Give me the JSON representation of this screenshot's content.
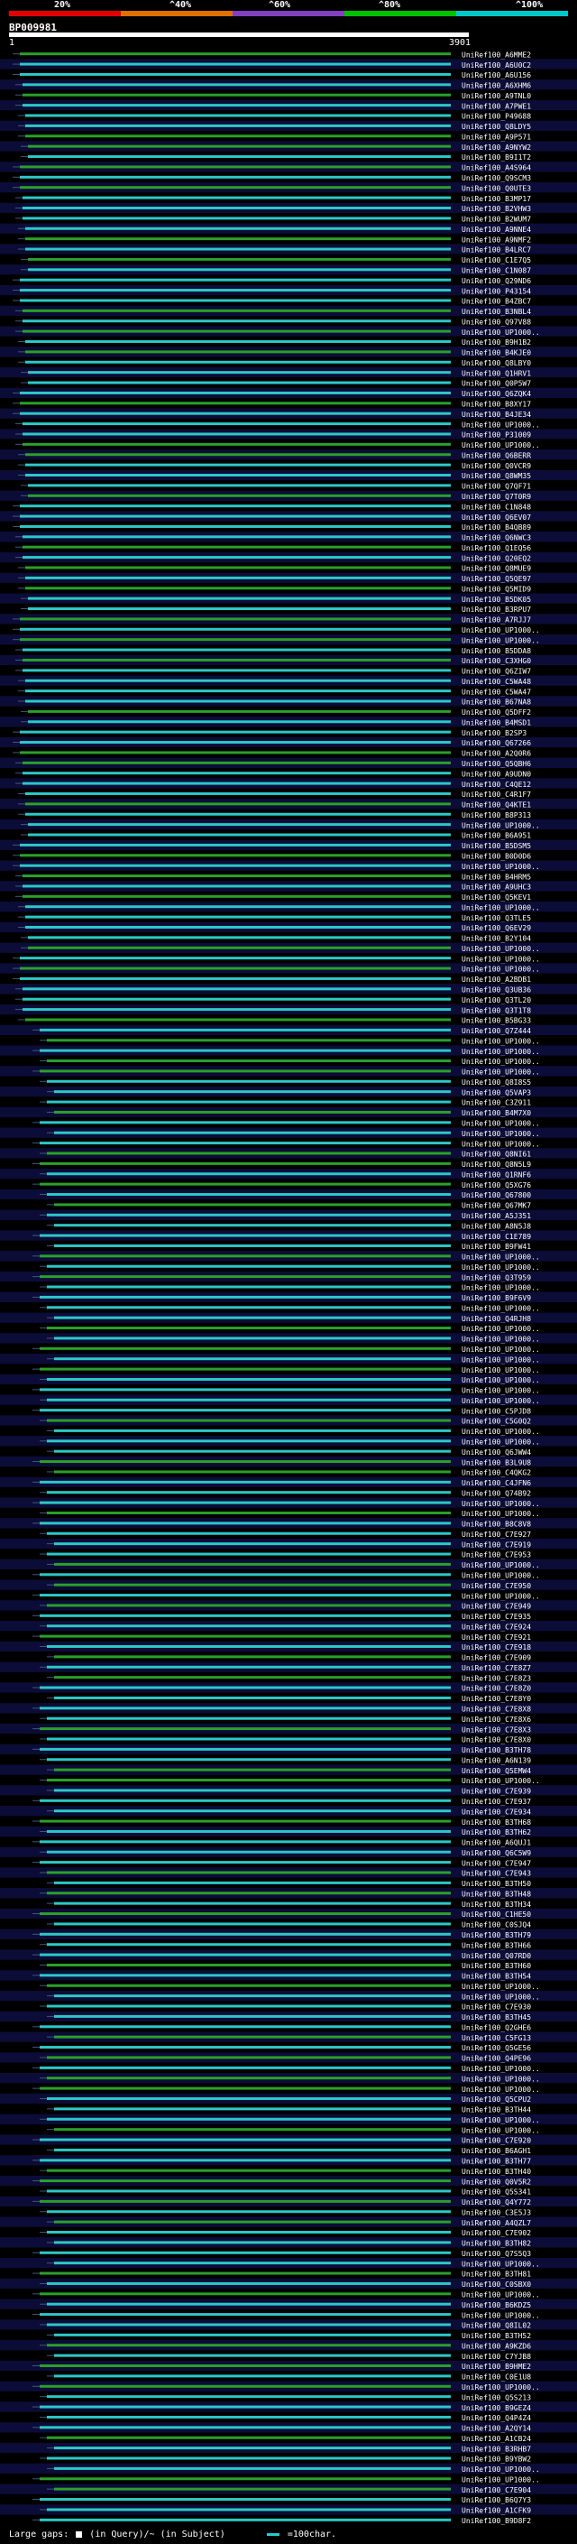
{
  "legend": {
    "labels": [
      "20%",
      "^40%",
      "^60%",
      "^80%",
      "^100%"
    ],
    "colors": [
      "#e00000",
      "#e07000",
      "#8040c0",
      "#00c000",
      "#00c8c8"
    ]
  },
  "query": {
    "name": "BP009981",
    "start": "1",
    "end": "3901"
  },
  "colors": {
    "row_bg_a": "#000000",
    "row_bg_b": "#0c0c38",
    "green": "#2aa02a",
    "cyan": "#2cc8c8",
    "line": "#3a5a7a"
  },
  "hits": [
    "UniRef100_A6MME2",
    "UniRef100_A6U0C2",
    "UniRef100_A6U156",
    "UniRef100_A6XHM6",
    "UniRef100_A9TNL0",
    "UniRef100_A7PWE1",
    "UniRef100_P49688",
    "UniRef100_Q8LDY5",
    "UniRef100_A9P571",
    "UniRef100_A9NYW2",
    "UniRef100_B9I1T2",
    "UniRef100_A4S964",
    "UniRef100_Q9SCM3",
    "UniRef100_Q0UTE3",
    "UniRef100_B3MP17",
    "UniRef100_B2VHW3",
    "UniRef100_B2WUM7",
    "UniRef100_A9NNE4",
    "UniRef100_A9NMF2",
    "UniRef100_B4LRC7",
    "UniRef100_C1E7Q5",
    "UniRef100_C1N087",
    "UniRef100_Q29ND6",
    "UniRef100_P43154",
    "UniRef100_B4ZBC7",
    "UniRef100_B3NBL4",
    "UniRef100_Q97V88",
    "UniRef100_UP1000..",
    "UniRef100_B9H1B2",
    "UniRef100_B4KJE0",
    "UniRef100_Q8LBY0",
    "UniRef100_Q1HRV1",
    "UniRef100_Q0P5W7",
    "UniRef100_Q6ZQK4",
    "UniRef100_B8XY17",
    "UniRef100_B4JE34",
    "UniRef100_UP1000..",
    "UniRef100_P31009",
    "UniRef100_UP1000..",
    "UniRef100_Q6BERR",
    "UniRef100_Q0VCR9",
    "UniRef100_Q8WM35",
    "UniRef100_Q7QF71",
    "UniRef100_Q7T0R9",
    "UniRef100_C1N848",
    "UniRef100_Q6EV07",
    "UniRef100_B4QB89",
    "UniRef100_Q6NWC3",
    "UniRef100_Q1EQ56",
    "UniRef100_Q20EQ2",
    "UniRef100_Q8MUE9",
    "UniRef100_Q5QE97",
    "UniRef100_Q5MID9",
    "UniRef100_B5DK05",
    "UniRef100_B3RPU7",
    "UniRef100_A7RJJ7",
    "UniRef100_UP1000..",
    "UniRef100_UP1000..",
    "UniRef100_B5DDA8",
    "UniRef100_C3XHG0",
    "UniRef100_Q6ZIW7",
    "UniRef100_C5WA48",
    "UniRef100_C5WA47",
    "UniRef100_B67NA8",
    "UniRef100_Q5DFF2",
    "UniRef100_B4MSD1",
    "UniRef100_B2SP3",
    "UniRef100_Q67266",
    "UniRef100_A2Q0R6",
    "UniRef100_Q5QBH6",
    "UniRef100_A9UDN0",
    "UniRef100_C4QE12",
    "UniRef100_C4R1F7",
    "UniRef100_Q4KTE1",
    "UniRef100_B8P313",
    "UniRef100_UP1000..",
    "UniRef100_B6A951",
    "UniRef100_B5DSM5",
    "UniRef100_B0D0D6",
    "UniRef100_UP1000..",
    "UniRef100_B4HRM5",
    "UniRef100_A9UHC3",
    "UniRef100_Q5KEV1",
    "UniRef100_UP1000..",
    "UniRef100_Q3TLE5",
    "UniRef100_Q6EV29",
    "UniRef100_B2Y104",
    "UniRef100_UP1000..",
    "UniRef100_UP1000..",
    "UniRef100_UP1000..",
    "UniRef100_A2BDB1",
    "UniRef100_Q3UB36",
    "UniRef100_Q3TL20",
    "UniRef100_Q3T1T8",
    "UniRef100_B5BG33",
    "UniRef100_Q7Z444",
    "UniRef100_UP1000..",
    "UniRef100_UP1000..",
    "UniRef100_UP1000..",
    "UniRef100_UP1000..",
    "UniRef100_Q8I8S5",
    "UniRef100_Q5VAP3",
    "UniRef100_C3Z911",
    "UniRef100_B4M7X0",
    "UniRef100_UP1000..",
    "UniRef100_UP1000..",
    "UniRef100_UP1000..",
    "UniRef100_Q8NI61",
    "UniRef100_Q8N5L9",
    "UniRef100_Q1RNF6",
    "UniRef100_Q5XG76",
    "UniRef100_Q67800",
    "UniRef100_Q67MK7",
    "UniRef100_A5J351",
    "UniRef100_A8N5J8",
    "UniRef100_C1E789",
    "UniRef100_B9FW41",
    "UniRef100_UP1000..",
    "UniRef100_UP1000..",
    "UniRef100_Q3T959",
    "UniRef100_UP1000..",
    "UniRef100_B9F6V9",
    "UniRef100_UP1000..",
    "UniRef100_Q4RJH8",
    "UniRef100_UP1000..",
    "UniRef100_UP1000..",
    "UniRef100_UP1000..",
    "UniRef100_UP1000..",
    "UniRef100_UP1000..",
    "UniRef100_UP1000..",
    "UniRef100_UP1000..",
    "UniRef100_UP1000..",
    "UniRef100_C5PJD8",
    "UniRef100_C5G0Q2",
    "UniRef100_UP1000..",
    "UniRef100_UP1000..",
    "UniRef100_Q6JWW4",
    "UniRef100_B3L9U8",
    "UniRef100_C4QKG2",
    "UniRef100_C4JFN6",
    "UniRef100_Q74B92",
    "UniRef100_UP1000..",
    "UniRef100_UP1000..",
    "UniRef100_B8C8V8",
    "UniRef100_C7E927",
    "UniRef100_C7E919",
    "UniRef100_C7E953",
    "UniRef100_UP1000..",
    "UniRef100_UP1000..",
    "UniRef100_C7E950",
    "UniRef100_UP1000..",
    "UniRef100_C7E949",
    "UniRef100_C7E935",
    "UniRef100_C7E924",
    "UniRef100_C7E921",
    "UniRef100_C7E918",
    "UniRef100_C7E909",
    "UniRef100_C7E8Z7",
    "UniRef100_C7E8Z3",
    "UniRef100_C7E8Z0",
    "UniRef100_C7E8Y0",
    "UniRef100_C7E8X8",
    "UniRef100_C7E8X6",
    "UniRef100_C7E8X3",
    "UniRef100_C7E8X0",
    "UniRef100_B3TH78",
    "UniRef100_A6N139",
    "UniRef100_Q5EMW4",
    "UniRef100_UP1000..",
    "UniRef100_C7E939",
    "UniRef100_C7E937",
    "UniRef100_C7E934",
    "UniRef100_B3TH68",
    "UniRef100_B3TH62",
    "UniRef100_A6QUJ1",
    "UniRef100_Q6C5W9",
    "UniRef100_C7E947",
    "UniRef100_C7E943",
    "UniRef100_B3TH50",
    "UniRef100_B3TH48",
    "UniRef100_B3TH34",
    "UniRef100_C1HE50",
    "UniRef100_C0SJQ4",
    "UniRef100_B3TH79",
    "UniRef100_B3TH66",
    "UniRef100_Q07RD0",
    "UniRef100_B3TH60",
    "UniRef100_B3TH54",
    "UniRef100_UP1000..",
    "UniRef100_UP1000..",
    "UniRef100_C7E930",
    "UniRef100_B3TH45",
    "UniRef100_Q2GHE6",
    "UniRef100_C5FG13",
    "UniRef100_Q5GE56",
    "UniRef100_Q4PE96",
    "UniRef100_UP1000..",
    "UniRef100_UP1000..",
    "UniRef100_UP1000..",
    "UniRef100_Q5CPU2",
    "UniRef100_B3TH44",
    "UniRef100_UP1000..",
    "UniRef100_UP1000..",
    "UniRef100_C7E920",
    "UniRef100_B6AGH1",
    "UniRef100_B3TH77",
    "UniRef100_B3TH40",
    "UniRef100_Q0V5R2",
    "UniRef100_Q5S341",
    "UniRef100_Q4Y772",
    "UniRef100_C3E5J3",
    "UniRef100_A4QZL7",
    "UniRef100_C7E902",
    "UniRef100_B3TH82",
    "UniRef100_Q7S5Q3",
    "UniRef100_UP1000..",
    "UniRef100_B3TH81",
    "UniRef100_C0SBX0",
    "UniRef100_UP1000..",
    "UniRef100_B6KDZ5",
    "UniRef100_UP1000..",
    "UniRef100_Q8IL02",
    "UniRef100_B3TH52",
    "UniRef100_A9KZD6",
    "UniRef100_C7YJB8",
    "UniRef100_B9HME2",
    "UniRef100_C0E1U8",
    "UniRef100_UP1000..",
    "UniRef100_Q5S213",
    "UniRef100_B9GEZ4",
    "UniRef100_Q4P4Z4",
    "UniRef100_A2QY14",
    "UniRef100_A1CB24",
    "UniRef100_B3RHB7",
    "UniRef100_B9YBW2",
    "UniRef100_UP1000..",
    "UniRef100_UP1000..",
    "UniRef100_C7E904",
    "UniRef100_B6Q7Y3",
    "UniRef100_A1CFK9",
    "UniRef100_B9D8F2"
  ],
  "footer": {
    "gaps_label": "Large gaps:",
    "in_query": "(in Query)/~ (in Subject)",
    "key_label": "=100char."
  }
}
